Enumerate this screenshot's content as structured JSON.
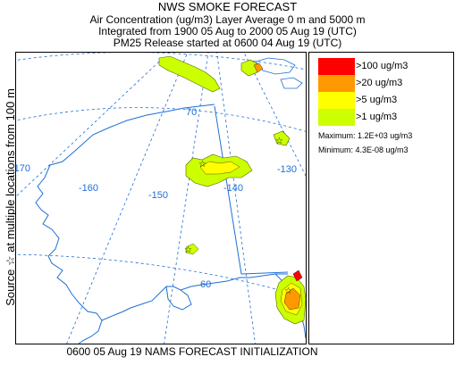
{
  "header": {
    "title": "NWS SMOKE FORECAST",
    "line1": "Air Concentration (ug/m3) Layer Average    0 m and  5000 m",
    "line2": "Integrated from 1900 05 Aug to 2000 05 Aug 19 (UTC)",
    "line3": "PM25 Release started at 0600 04 Aug 19 (UTC)"
  },
  "side_label": "Source ☆ at multiple locations  from   100 m",
  "map": {
    "longitude_labels": [
      "-170",
      "-160",
      "-150",
      "-140",
      "-130"
    ],
    "latitude_labels": [
      "70",
      "60"
    ],
    "source_marker": "☆",
    "colors": {
      "coast": "#1e6fd6",
      "graticule": "#1e6fd6",
      "border": "#1e6fd6",
      "level_1": "#ccff00",
      "level_5": "#ffff00",
      "level_20": "#ff9900",
      "level_100": "#ff0000"
    }
  },
  "legend": {
    "items": [
      {
        "label": ">100 ug/m3",
        "color": "#ff0000"
      },
      {
        "label": ">20 ug/m3",
        "color": "#ff9900"
      },
      {
        "label": ">5 ug/m3",
        "color": "#ffff00"
      },
      {
        "label": ">1 ug/m3",
        "color": "#ccff00"
      }
    ],
    "maximum": "Maximum: 1.2E+03 ug/m3",
    "minimum": "Minimum: 4.3E-08 ug/m3"
  },
  "footer": "0600 05 Aug 19 NAMS FORECAST INITIALIZATION"
}
